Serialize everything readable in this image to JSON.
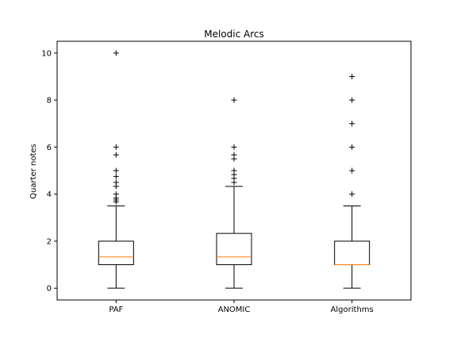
{
  "chart_data": {
    "type": "box",
    "title": "Melodic Arcs",
    "xlabel": "",
    "ylabel": "Quarter notes",
    "ylim": [
      -0.5,
      10.5
    ],
    "yticks": [
      0,
      2,
      4,
      6,
      8,
      10
    ],
    "ytick_labels": [
      "0",
      "2",
      "4",
      "6",
      "8",
      "10"
    ],
    "grid": false,
    "categories": [
      "PAF",
      "ANOMIC",
      "Algorithms"
    ],
    "boxes": [
      {
        "label": "PAF",
        "whisker_low": 0,
        "q1": 1.0,
        "median": 1.33,
        "q3": 2.0,
        "whisker_high": 3.5,
        "outliers": [
          3.67,
          3.75,
          3.83,
          4.0,
          4.33,
          4.5,
          4.75,
          5.0,
          5.67,
          6.0,
          10.0
        ]
      },
      {
        "label": "ANOMIC",
        "whisker_low": 0,
        "q1": 1.0,
        "median": 1.33,
        "q3": 2.33,
        "whisker_high": 4.33,
        "outliers": [
          4.5,
          4.67,
          4.83,
          5.0,
          5.5,
          5.67,
          6.0,
          8.0
        ]
      },
      {
        "label": "Algorithms",
        "whisker_low": 0,
        "q1": 1.0,
        "median": 1.0,
        "q3": 2.0,
        "whisker_high": 3.5,
        "outliers": [
          4.0,
          5.0,
          6.0,
          7.0,
          8.0,
          9.0
        ]
      }
    ],
    "colors": {
      "box": "#000000",
      "median": "#ff7f0e",
      "outlier": "#000000"
    }
  }
}
